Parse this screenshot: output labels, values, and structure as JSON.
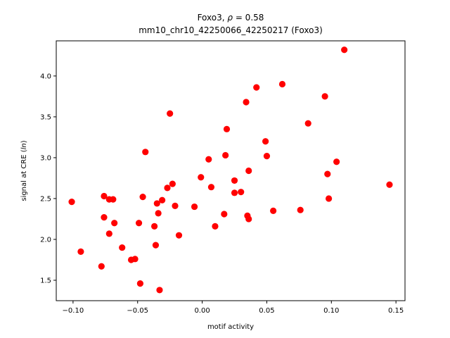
{
  "chart_data": {
    "type": "scatter",
    "title": "Foxo3, ρ = 0.58",
    "title_parts": {
      "prefix": "Foxo3, ",
      "rho": "ρ",
      "suffix": " = 0.58"
    },
    "subtitle": "mm10_chr10_42250066_42250217 (Foxo3)",
    "xlabel": "motif activity",
    "ylabel": "signal at CRE (ln)",
    "ylabel_parts": {
      "prefix": "signal at CRE (",
      "italic": "ln",
      "suffix": ")"
    },
    "xlim": [
      -0.113,
      0.157
    ],
    "ylim": [
      1.25,
      4.43
    ],
    "xticks": [
      -0.1,
      -0.05,
      0.0,
      0.05,
      0.1,
      0.15
    ],
    "xtick_labels": [
      "−0.10",
      "−0.05",
      "0.00",
      "0.05",
      "0.10",
      "0.15"
    ],
    "yticks": [
      1.5,
      2.0,
      2.5,
      3.0,
      3.5,
      4.0
    ],
    "ytick_labels": [
      "1.5",
      "2.0",
      "2.5",
      "3.0",
      "3.5",
      "4.0"
    ],
    "grid": false,
    "marker_color": "#ff0000",
    "points": [
      {
        "x": -0.101,
        "y": 2.46
      },
      {
        "x": -0.094,
        "y": 1.85
      },
      {
        "x": -0.078,
        "y": 1.67
      },
      {
        "x": -0.076,
        "y": 2.53
      },
      {
        "x": -0.076,
        "y": 2.27
      },
      {
        "x": -0.072,
        "y": 2.49
      },
      {
        "x": -0.072,
        "y": 2.07
      },
      {
        "x": -0.069,
        "y": 2.49
      },
      {
        "x": -0.068,
        "y": 2.2
      },
      {
        "x": -0.062,
        "y": 1.9
      },
      {
        "x": -0.055,
        "y": 1.75
      },
      {
        "x": -0.052,
        "y": 1.76
      },
      {
        "x": -0.049,
        "y": 2.2
      },
      {
        "x": -0.048,
        "y": 1.46
      },
      {
        "x": -0.046,
        "y": 2.52
      },
      {
        "x": -0.044,
        "y": 3.07
      },
      {
        "x": -0.037,
        "y": 2.16
      },
      {
        "x": -0.036,
        "y": 1.93
      },
      {
        "x": -0.035,
        "y": 2.44
      },
      {
        "x": -0.034,
        "y": 2.32
      },
      {
        "x": -0.033,
        "y": 1.38
      },
      {
        "x": -0.031,
        "y": 2.48
      },
      {
        "x": -0.027,
        "y": 2.63
      },
      {
        "x": -0.025,
        "y": 3.54
      },
      {
        "x": -0.023,
        "y": 2.68
      },
      {
        "x": -0.021,
        "y": 2.41
      },
      {
        "x": -0.018,
        "y": 2.05
      },
      {
        "x": -0.006,
        "y": 2.4
      },
      {
        "x": -0.001,
        "y": 2.76
      },
      {
        "x": 0.005,
        "y": 2.98
      },
      {
        "x": 0.007,
        "y": 2.64
      },
      {
        "x": 0.01,
        "y": 2.16
      },
      {
        "x": 0.017,
        "y": 2.31
      },
      {
        "x": 0.018,
        "y": 3.03
      },
      {
        "x": 0.019,
        "y": 3.35
      },
      {
        "x": 0.025,
        "y": 2.72
      },
      {
        "x": 0.025,
        "y": 2.57
      },
      {
        "x": 0.03,
        "y": 2.58
      },
      {
        "x": 0.034,
        "y": 3.68
      },
      {
        "x": 0.035,
        "y": 2.29
      },
      {
        "x": 0.036,
        "y": 2.25
      },
      {
        "x": 0.036,
        "y": 2.84
      },
      {
        "x": 0.042,
        "y": 3.86
      },
      {
        "x": 0.049,
        "y": 3.2
      },
      {
        "x": 0.05,
        "y": 3.02
      },
      {
        "x": 0.055,
        "y": 2.35
      },
      {
        "x": 0.062,
        "y": 3.9
      },
      {
        "x": 0.076,
        "y": 2.36
      },
      {
        "x": 0.082,
        "y": 3.42
      },
      {
        "x": 0.095,
        "y": 3.75
      },
      {
        "x": 0.097,
        "y": 2.8
      },
      {
        "x": 0.098,
        "y": 2.5
      },
      {
        "x": 0.104,
        "y": 2.95
      },
      {
        "x": 0.11,
        "y": 4.32
      },
      {
        "x": 0.145,
        "y": 2.67
      }
    ]
  }
}
